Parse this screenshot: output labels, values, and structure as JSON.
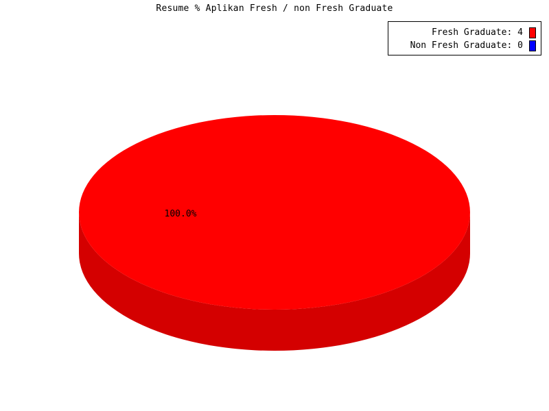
{
  "chart_data": {
    "type": "pie",
    "title": "Resume % Aplikan Fresh / non Fresh Graduate",
    "categories": [
      "Fresh Graduate",
      "Non Fresh Graduate"
    ],
    "values": [
      4,
      0
    ],
    "percent_labels": [
      "100.0%"
    ],
    "legend": {
      "entries": [
        {
          "label": "Fresh Graduate: 4",
          "color": "#ff0000"
        },
        {
          "label": "Non Fresh Graduate: 0",
          "color": "#0000ff"
        }
      ],
      "placement": "top-right"
    },
    "style": "3d"
  },
  "colors": {
    "slice_top": "#ff0000",
    "slice_side": "#d40000",
    "series_2": "#0000ff"
  }
}
